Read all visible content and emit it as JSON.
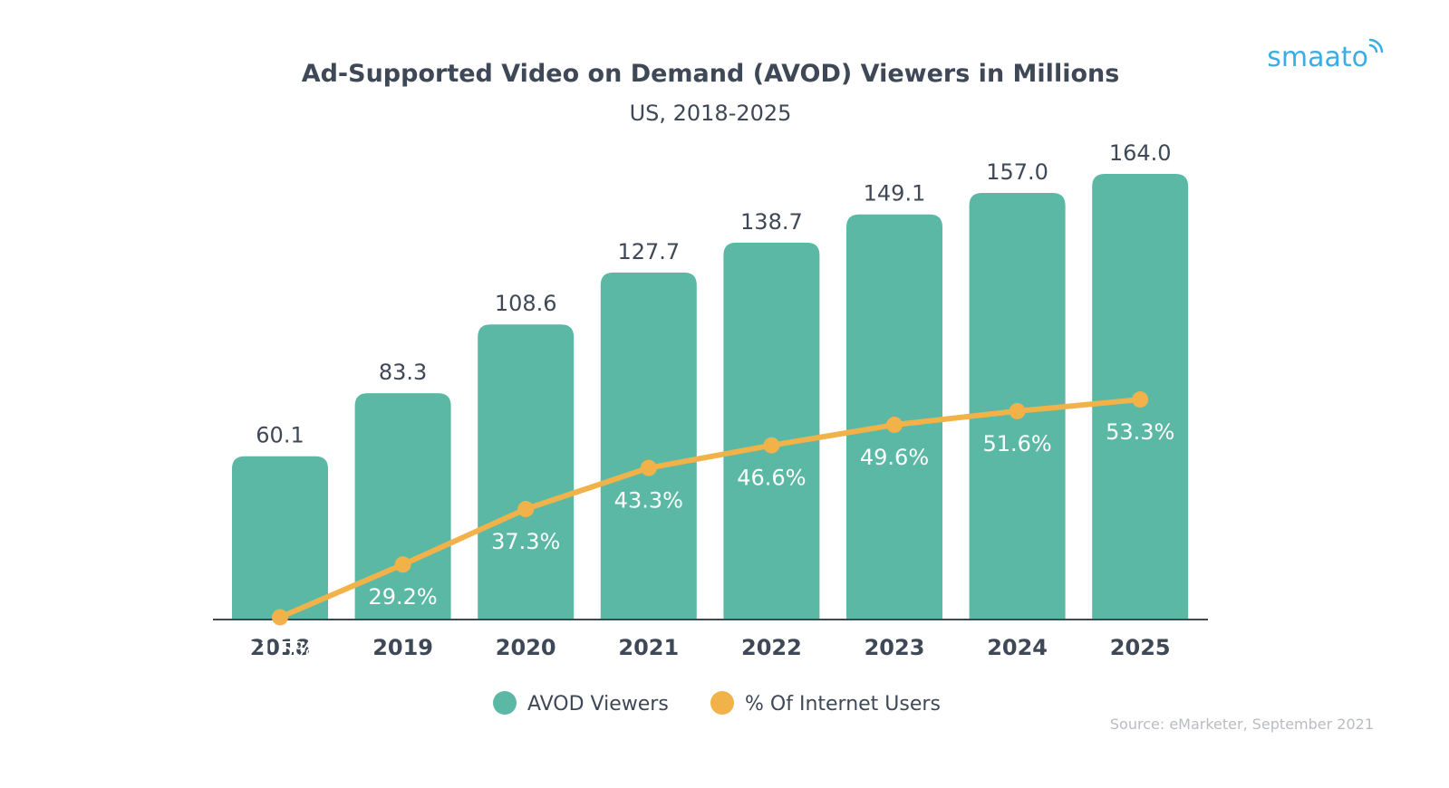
{
  "logo": {
    "text": "smaato"
  },
  "source": "Source: eMarketer, September 2021",
  "legend": [
    {
      "label": "AVOD Viewers",
      "color": "#5bb8a4"
    },
    {
      "label": "% Of Internet Users",
      "color": "#f0b249"
    }
  ],
  "colors": {
    "bar": "#5bb8a4",
    "line": "#f0b249",
    "text": "#3f4856",
    "axis": "#3f4856"
  },
  "chart_data": {
    "type": "bar",
    "title": "Ad-Supported Video on Demand (AVOD) Viewers in Millions",
    "subtitle": "US, 2018-2025",
    "categories": [
      "2018",
      "2019",
      "2020",
      "2021",
      "2022",
      "2023",
      "2024",
      "2025"
    ],
    "series": [
      {
        "name": "AVOD Viewers",
        "type": "bar",
        "values": [
          60.1,
          83.3,
          108.6,
          127.7,
          138.7,
          149.1,
          157.0,
          164.0
        ],
        "labels": [
          "60.1",
          "83.3",
          "108.6",
          "127.7",
          "138.7",
          "149.1",
          "157.0",
          "164.0"
        ]
      },
      {
        "name": "% Of Internet Users",
        "type": "line",
        "values": [
          21.5,
          29.2,
          37.3,
          43.3,
          46.6,
          49.6,
          51.6,
          53.3
        ],
        "labels": [
          "21.5%",
          "29.2%",
          "37.3%",
          "43.3%",
          "46.6%",
          "49.6%",
          "51.6%",
          "53.3%"
        ]
      }
    ],
    "grid": false,
    "legend_position": "bottom-center"
  }
}
